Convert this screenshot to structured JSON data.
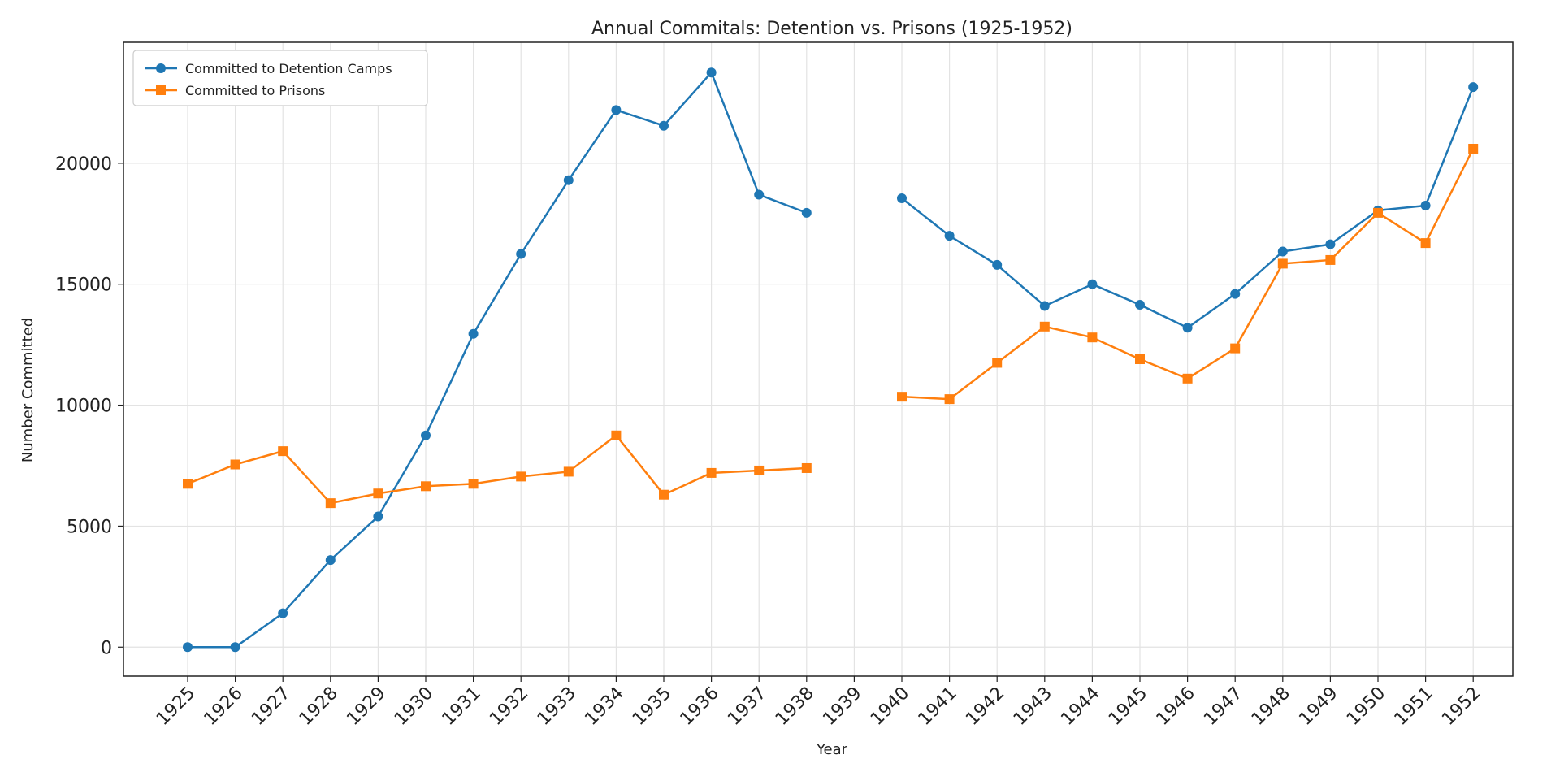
{
  "chart_data": {
    "type": "line",
    "title": "Annual Commitals: Detention vs. Prisons (1925-1952)",
    "xlabel": "Year",
    "ylabel": "Number Committed",
    "categories": [
      "1925",
      "1926",
      "1927",
      "1928",
      "1929",
      "1930",
      "1931",
      "1932",
      "1933",
      "1934",
      "1935",
      "1936",
      "1937",
      "1938",
      "1939",
      "1940",
      "1941",
      "1942",
      "1943",
      "1944",
      "1945",
      "1946",
      "1947",
      "1948",
      "1949",
      "1950",
      "1951",
      "1952"
    ],
    "yticks": [
      0,
      5000,
      10000,
      15000,
      20000
    ],
    "ytick_labels": [
      "0",
      "5000",
      "10000",
      "15000",
      "20000"
    ],
    "ylim": [
      -1200,
      25000
    ],
    "grid": true,
    "legend_position": "top-left",
    "series": [
      {
        "name": "Committed to Detention Camps",
        "color": "#1f77b4",
        "marker": "circle",
        "values": [
          0,
          0,
          1400,
          3600,
          5400,
          8750,
          12950,
          16250,
          19300,
          22200,
          21550,
          23750,
          18700,
          17950,
          null,
          18550,
          17000,
          15800,
          14100,
          15000,
          14150,
          13200,
          14600,
          16350,
          16650,
          18050,
          18250,
          23150
        ]
      },
      {
        "name": "Committed to Prisons",
        "color": "#ff7f0e",
        "marker": "square",
        "values": [
          6750,
          7550,
          8100,
          5950,
          6350,
          6650,
          6750,
          7050,
          7250,
          8750,
          6300,
          7200,
          7300,
          7400,
          null,
          10350,
          10250,
          11750,
          13250,
          12800,
          11900,
          11100,
          12350,
          15850,
          16000,
          17950,
          16700,
          20600
        ]
      }
    ]
  }
}
